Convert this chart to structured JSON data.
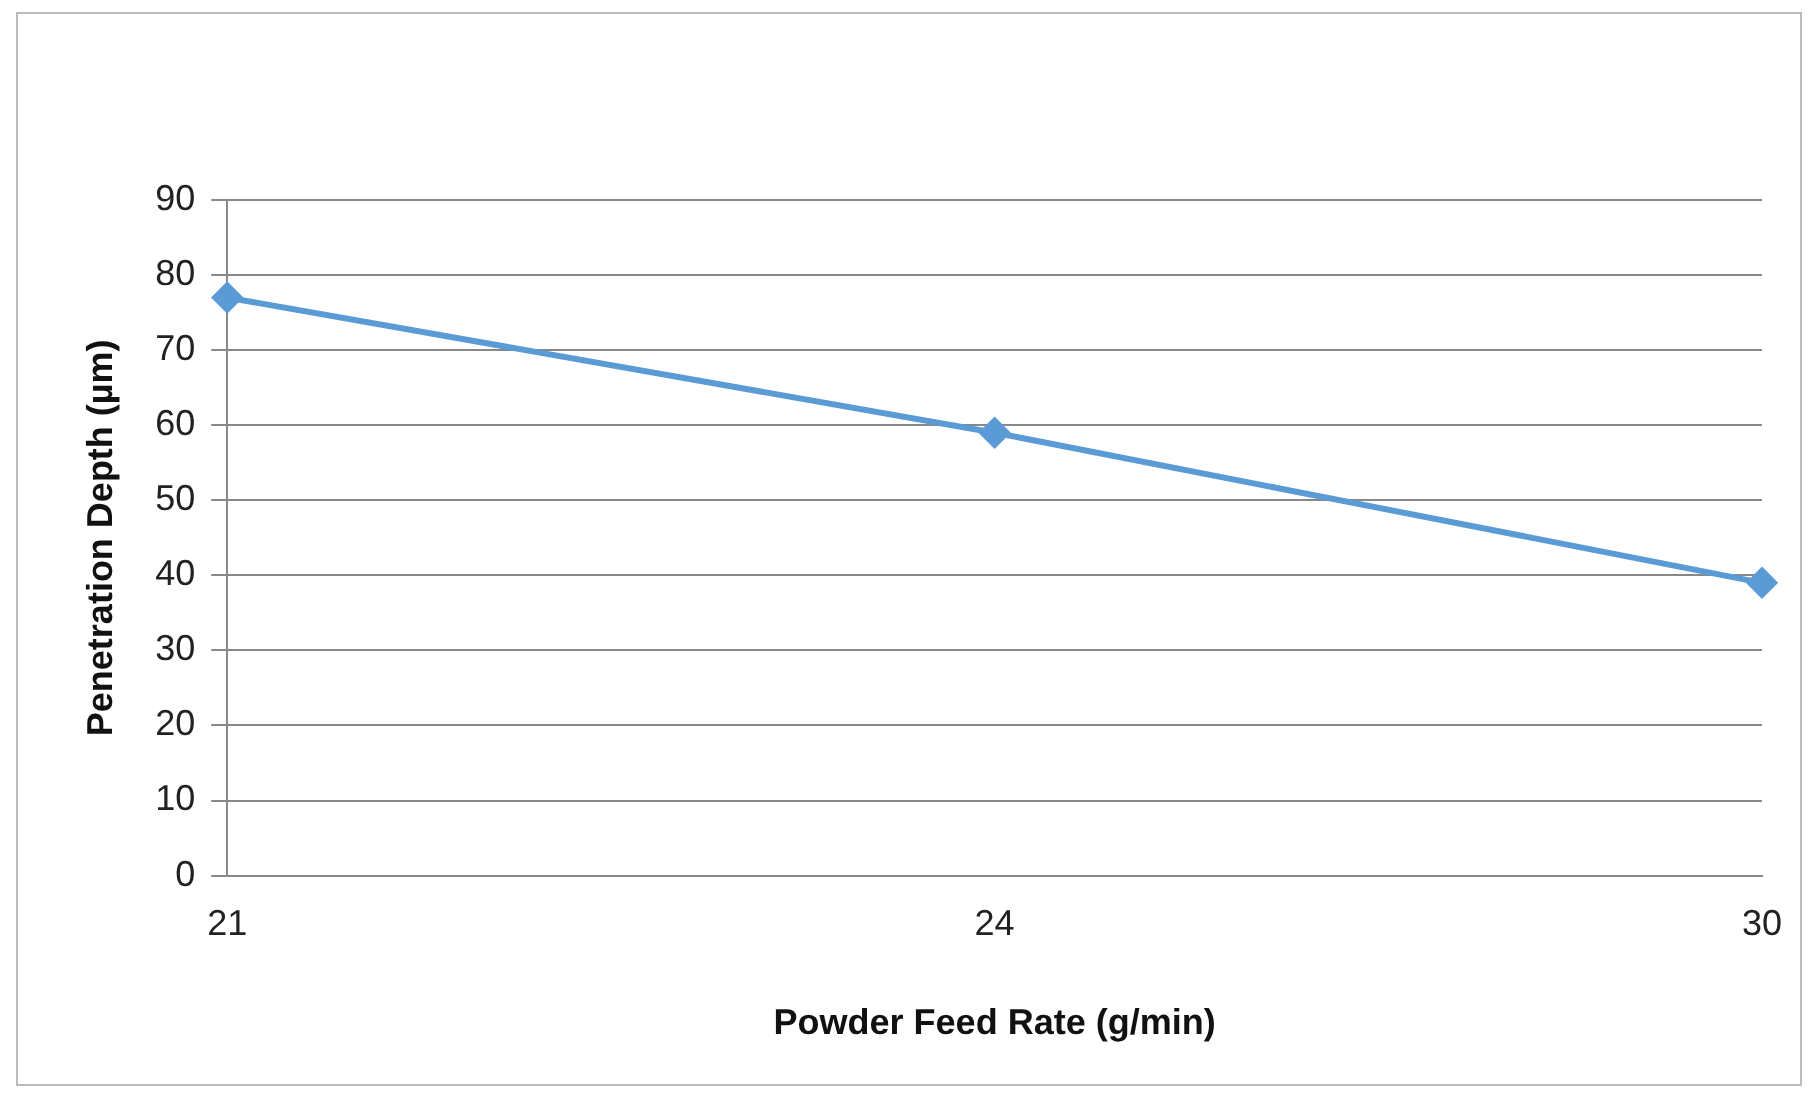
{
  "chart_data": {
    "type": "line",
    "xlabel": "Powder Feed Rate (g/min)",
    "ylabel": "Penetration Depth (µm)",
    "categories": [
      "21",
      "24",
      "30"
    ],
    "series": [
      {
        "color": "#5b9bd5",
        "values": [
          77,
          59,
          39
        ]
      }
    ],
    "ylim": [
      0,
      90
    ],
    "yticks": [
      0,
      10,
      20,
      30,
      40,
      50,
      60,
      70,
      80,
      90
    ],
    "grid": "y",
    "legend": false,
    "marker": "diamond",
    "line_style": "solid"
  }
}
